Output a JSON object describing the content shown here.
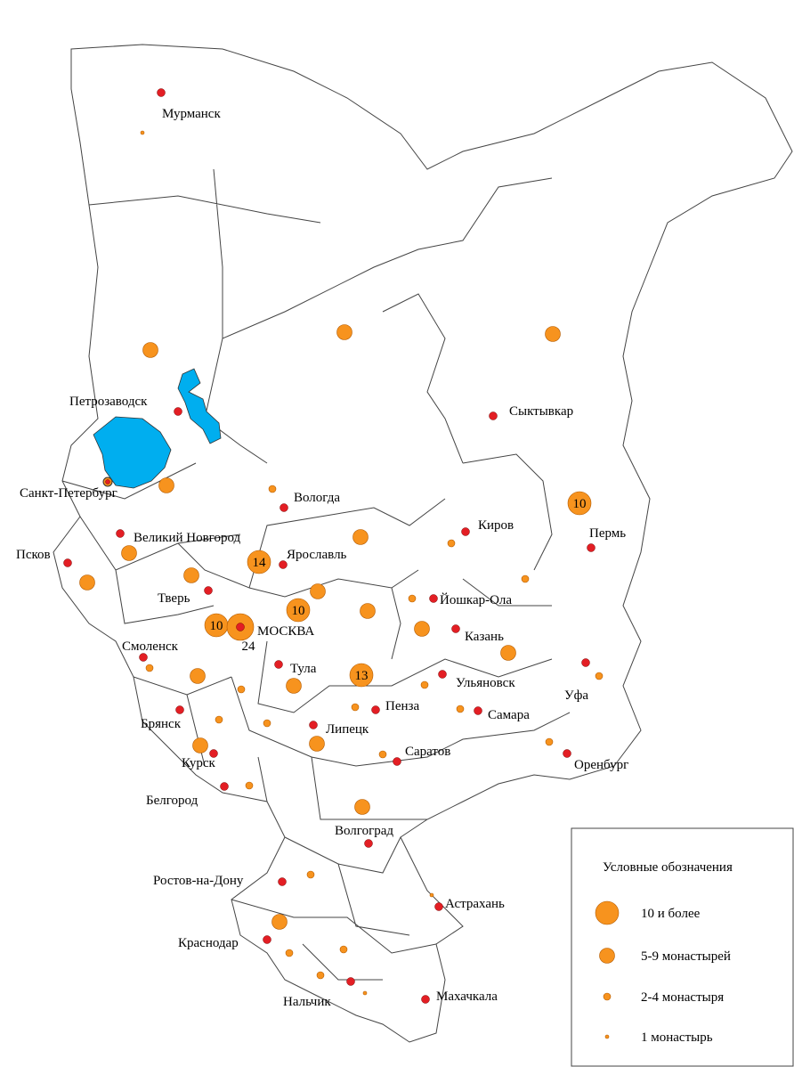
{
  "cities": [
    "Мурманск",
    "Петрозаводск",
    "Санкт-Петербург",
    "Вологда",
    "Псков",
    "Великий Новгород",
    "Ярославль",
    "Киров",
    "Пермь",
    "Сыктывкар",
    "Тверь",
    "Йошкар-Ола",
    "МОСКВА",
    "Смоленск",
    "Казань",
    "Тула",
    "Ульяновск",
    "Уфа",
    "Брянск",
    "Пенза",
    "Самара",
    "Липецк",
    "Саратов",
    "Курск",
    "Оренбург",
    "Белгород",
    "Волгоград",
    "Ростов-на-Дону",
    "Астрахань",
    "Краснодар",
    "Нальчик",
    "Махачкала"
  ],
  "counts": [
    10,
    14,
    10,
    10,
    13,
    24
  ],
  "legend": {
    "title": "Условные обозначения",
    "items": [
      "10 и более",
      "5-9 монастырей",
      "2-4 монастыря",
      "1 монастырь"
    ]
  }
}
